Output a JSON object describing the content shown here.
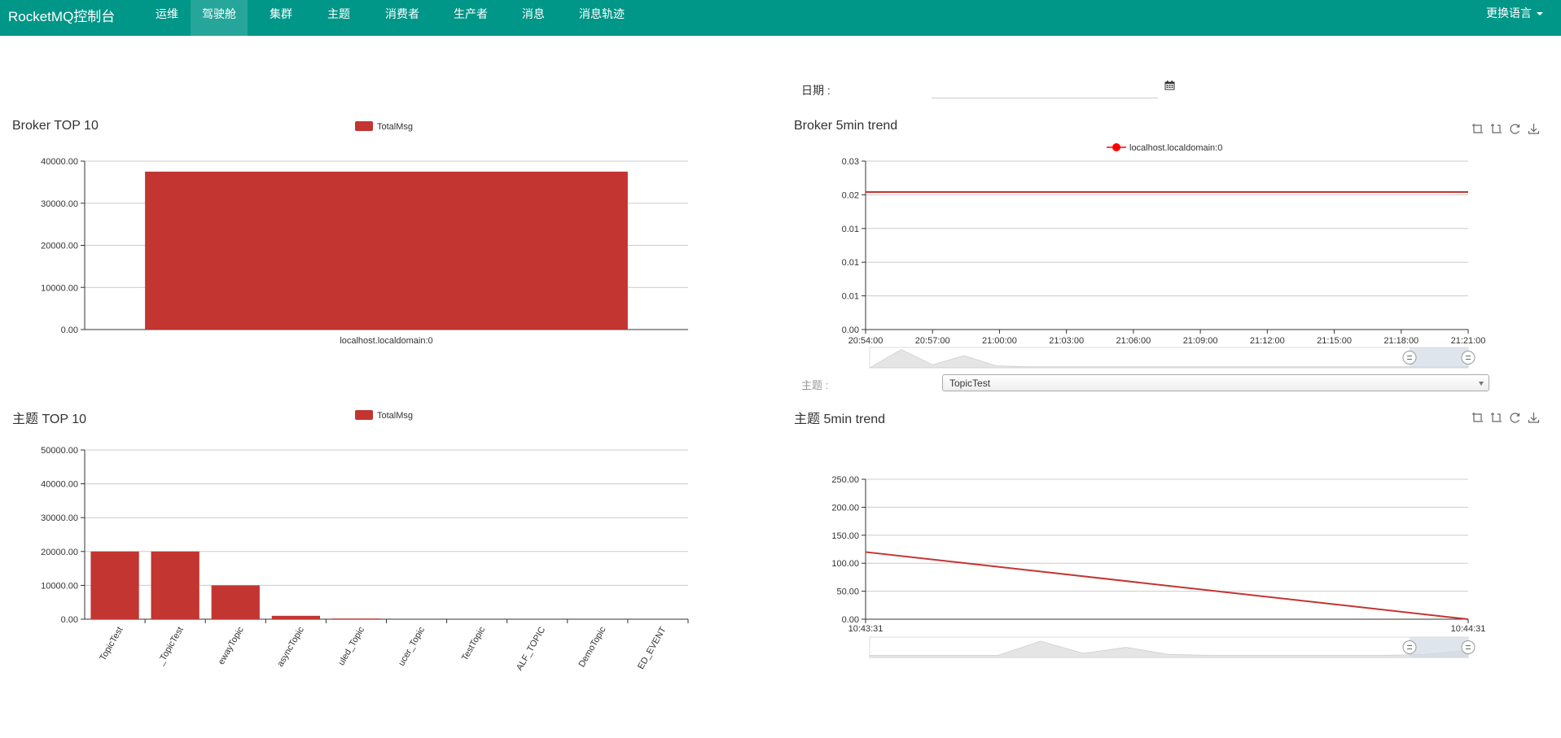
{
  "header": {
    "brand": "RocketMQ控制台",
    "nav": [
      {
        "label": "运维",
        "active": false
      },
      {
        "label": "驾驶舱",
        "active": true
      },
      {
        "label": "集群",
        "active": false
      },
      {
        "label": "主题",
        "active": false
      },
      {
        "label": "消费者",
        "active": false
      },
      {
        "label": "生产者",
        "active": false
      },
      {
        "label": "消息",
        "active": false
      },
      {
        "label": "消息轨迹",
        "active": false
      }
    ],
    "language_label": "更换语言"
  },
  "filters": {
    "date_label": "日期 :",
    "date_value": "",
    "topic_label": "主题 :",
    "topic_selected": "TopicTest"
  },
  "panels": {
    "broker_top10_title": "Broker TOP 10",
    "broker_trend_title": "Broker 5min trend",
    "topic_top10_title": "主题 TOP 10",
    "topic_trend_title": "主题 5min trend"
  },
  "toolbox": [
    "zoom-icon",
    "zoom-reset-icon",
    "restore-icon",
    "download-icon"
  ],
  "colors": {
    "nav_bg": "#009688",
    "nav_active": "#26a69a",
    "bar": "#c23531",
    "line": "#c23531",
    "trend_marker": "#ff0000"
  },
  "chart_data": [
    {
      "id": "broker-top10",
      "type": "bar",
      "legend": [
        "TotalMsg"
      ],
      "categories": [
        "localhost.localdomain:0"
      ],
      "values": [
        37500
      ],
      "yticks": [
        "0.00",
        "10000.00",
        "20000.00",
        "30000.00",
        "40000.00"
      ],
      "ylim": [
        0,
        40000
      ]
    },
    {
      "id": "broker-trend",
      "type": "line",
      "legend": [
        "localhost.localdomain:0"
      ],
      "x": [
        "20:54:00",
        "20:57:00",
        "21:00:00",
        "21:03:00",
        "21:06:00",
        "21:09:00",
        "21:12:00",
        "21:15:00",
        "21:18:00",
        "21:21:00"
      ],
      "values": [
        0.0245,
        0.0245,
        0.0245,
        0.0245,
        0.0245,
        0.0245,
        0.0245,
        0.0245,
        0.0245,
        0.0245
      ],
      "yticks": [
        "0.00",
        "0.01",
        "0.01",
        "0.01",
        "0.02",
        "0.03"
      ],
      "ylim": [
        0,
        0.03
      ],
      "datazoom": [
        0,
        100
      ]
    },
    {
      "id": "topic-top10",
      "type": "bar",
      "legend": [
        "TotalMsg"
      ],
      "categories": [
        "TopicTest",
        "_TopicTest",
        "ewayTopic",
        "asyncTopic",
        "uled_Topic",
        "ucer_Topic",
        "TestTopic",
        "ALF_TOPIC",
        "DemoTopic",
        "ED_EVENT"
      ],
      "values": [
        20000,
        20000,
        10000,
        1000,
        200,
        0,
        0,
        0,
        0,
        0
      ],
      "yticks": [
        "0.00",
        "10000.00",
        "20000.00",
        "30000.00",
        "40000.00",
        "50000.00"
      ],
      "ylim": [
        0,
        50000
      ]
    },
    {
      "id": "topic-trend",
      "type": "line",
      "x": [
        "10:43:31",
        "10:44:31"
      ],
      "values": [
        120,
        0
      ],
      "yticks": [
        "0.00",
        "50.00",
        "100.00",
        "150.00",
        "200.00",
        "250.00"
      ],
      "ylim": [
        0,
        250
      ],
      "datazoom": [
        0,
        100
      ]
    }
  ]
}
